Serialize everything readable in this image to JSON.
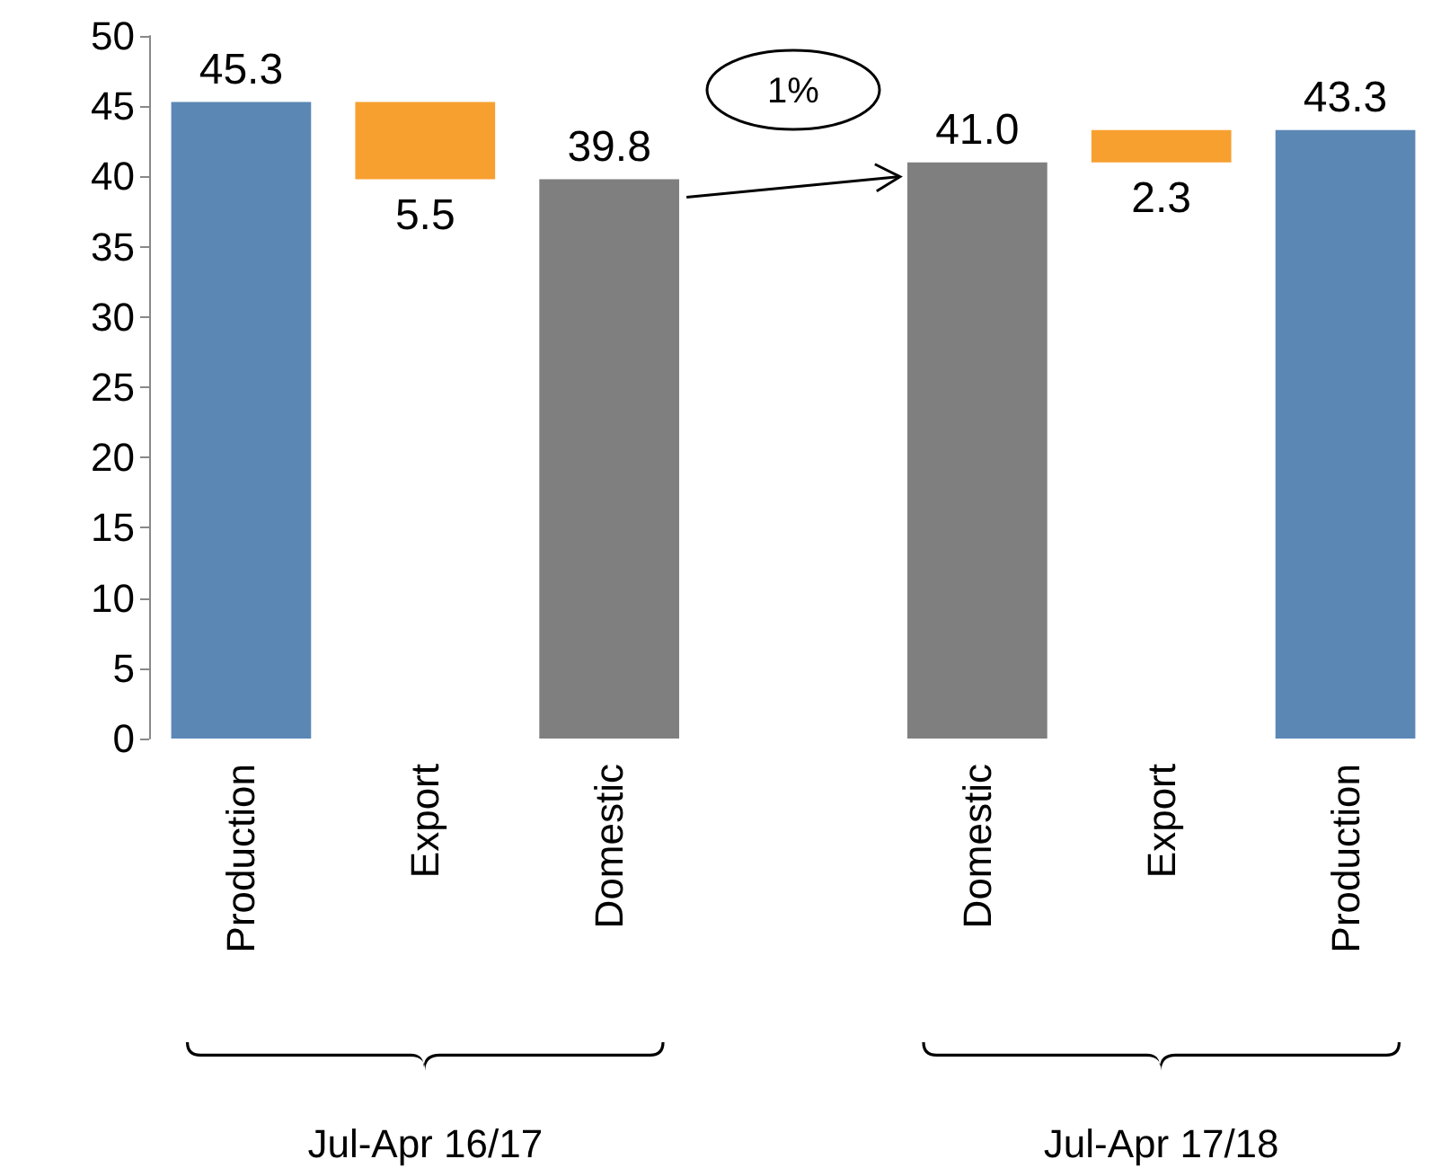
{
  "chart_data": {
    "type": "bar",
    "categories": [
      "Production",
      "Export",
      "Domestic",
      null,
      "Domestic",
      "Export",
      "Production"
    ],
    "values": [
      45.3,
      5.5,
      39.8,
      null,
      41.0,
      2.3,
      43.3
    ],
    "base": [
      0,
      39.8,
      0,
      null,
      0,
      41.0,
      0
    ],
    "colors": [
      "#5b87b5",
      "#f7a030",
      "#7f7f7f",
      null,
      "#7f7f7f",
      "#f7a030",
      "#5b87b5"
    ],
    "value_labels": [
      "45.3",
      "5.5",
      "39.8",
      null,
      "41.0",
      "2.3",
      "43.3"
    ],
    "ylim": [
      0,
      50
    ],
    "yticks": [
      0,
      5,
      10,
      15,
      20,
      25,
      30,
      35,
      40,
      45,
      50
    ],
    "annotations": [
      "1%",
      "Jul-Apr 16/17",
      "Jul-Apr 17/18"
    ]
  }
}
